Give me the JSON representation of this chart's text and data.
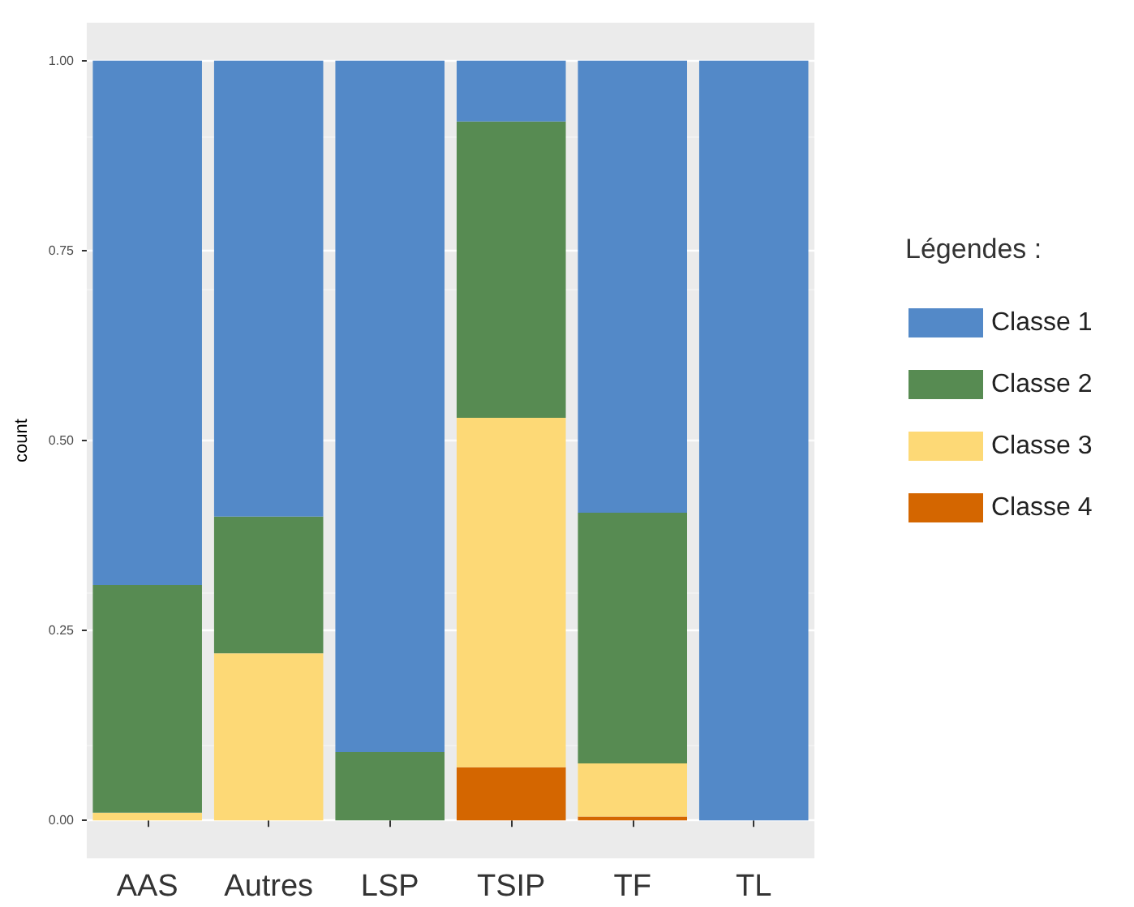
{
  "chart_data": {
    "type": "bar",
    "stacked": true,
    "ylabel": "count",
    "legend_title": "Légendes :",
    "categories": [
      "AAS",
      "Autres",
      "LSP",
      "TSIP",
      "TF",
      "TL"
    ],
    "series": [
      {
        "name": "Classe 4",
        "color": "#d46600",
        "values": [
          0,
          0,
          0,
          0.07,
          0.005,
          0
        ]
      },
      {
        "name": "Classe 3",
        "color": "#fdd976",
        "values": [
          0.01,
          0.22,
          0,
          0.46,
          0.07,
          0
        ]
      },
      {
        "name": "Classe 2",
        "color": "#578b52",
        "values": [
          0.3,
          0.18,
          0.09,
          0.39,
          0.33,
          0
        ]
      },
      {
        "name": "Classe 1",
        "color": "#5389c8",
        "values": [
          0.69,
          0.6,
          0.91,
          0.08,
          0.595,
          1
        ]
      }
    ],
    "ylim": [
      -0.05,
      1.05
    ],
    "yticks": [
      {
        "value": 0,
        "label": "0.00"
      },
      {
        "value": 0.25,
        "label": "0.25"
      },
      {
        "value": 0.5,
        "label": "0.50"
      },
      {
        "value": 0.75,
        "label": "0.75"
      },
      {
        "value": 1,
        "label": "1.00"
      }
    ],
    "grid": "y",
    "legend": "right"
  }
}
